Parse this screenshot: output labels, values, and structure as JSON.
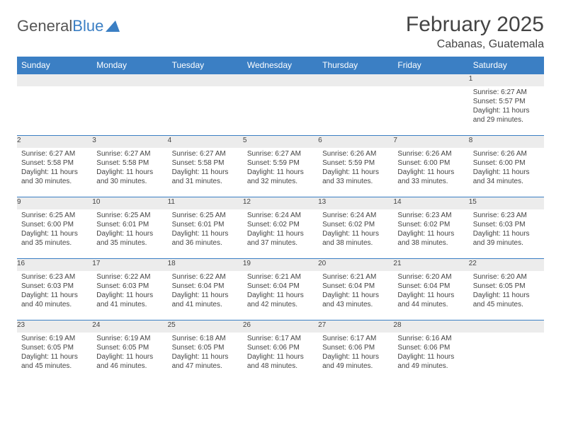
{
  "logo": {
    "text1": "General",
    "text2": "Blue"
  },
  "title": "February 2025",
  "location": "Cabanas, Guatemala",
  "colors": {
    "header_bg": "#3b7fc4",
    "header_text": "#ffffff",
    "daynum_bg": "#ececec",
    "border": "#3b7fc4",
    "body_text": "#444444"
  },
  "weekdays": [
    "Sunday",
    "Monday",
    "Tuesday",
    "Wednesday",
    "Thursday",
    "Friday",
    "Saturday"
  ],
  "weeks": [
    [
      null,
      null,
      null,
      null,
      null,
      null,
      {
        "n": "1",
        "sr": "Sunrise: 6:27 AM",
        "ss": "Sunset: 5:57 PM",
        "dl": "Daylight: 11 hours and 29 minutes."
      }
    ],
    [
      {
        "n": "2",
        "sr": "Sunrise: 6:27 AM",
        "ss": "Sunset: 5:58 PM",
        "dl": "Daylight: 11 hours and 30 minutes."
      },
      {
        "n": "3",
        "sr": "Sunrise: 6:27 AM",
        "ss": "Sunset: 5:58 PM",
        "dl": "Daylight: 11 hours and 30 minutes."
      },
      {
        "n": "4",
        "sr": "Sunrise: 6:27 AM",
        "ss": "Sunset: 5:58 PM",
        "dl": "Daylight: 11 hours and 31 minutes."
      },
      {
        "n": "5",
        "sr": "Sunrise: 6:27 AM",
        "ss": "Sunset: 5:59 PM",
        "dl": "Daylight: 11 hours and 32 minutes."
      },
      {
        "n": "6",
        "sr": "Sunrise: 6:26 AM",
        "ss": "Sunset: 5:59 PM",
        "dl": "Daylight: 11 hours and 33 minutes."
      },
      {
        "n": "7",
        "sr": "Sunrise: 6:26 AM",
        "ss": "Sunset: 6:00 PM",
        "dl": "Daylight: 11 hours and 33 minutes."
      },
      {
        "n": "8",
        "sr": "Sunrise: 6:26 AM",
        "ss": "Sunset: 6:00 PM",
        "dl": "Daylight: 11 hours and 34 minutes."
      }
    ],
    [
      {
        "n": "9",
        "sr": "Sunrise: 6:25 AM",
        "ss": "Sunset: 6:00 PM",
        "dl": "Daylight: 11 hours and 35 minutes."
      },
      {
        "n": "10",
        "sr": "Sunrise: 6:25 AM",
        "ss": "Sunset: 6:01 PM",
        "dl": "Daylight: 11 hours and 35 minutes."
      },
      {
        "n": "11",
        "sr": "Sunrise: 6:25 AM",
        "ss": "Sunset: 6:01 PM",
        "dl": "Daylight: 11 hours and 36 minutes."
      },
      {
        "n": "12",
        "sr": "Sunrise: 6:24 AM",
        "ss": "Sunset: 6:02 PM",
        "dl": "Daylight: 11 hours and 37 minutes."
      },
      {
        "n": "13",
        "sr": "Sunrise: 6:24 AM",
        "ss": "Sunset: 6:02 PM",
        "dl": "Daylight: 11 hours and 38 minutes."
      },
      {
        "n": "14",
        "sr": "Sunrise: 6:23 AM",
        "ss": "Sunset: 6:02 PM",
        "dl": "Daylight: 11 hours and 38 minutes."
      },
      {
        "n": "15",
        "sr": "Sunrise: 6:23 AM",
        "ss": "Sunset: 6:03 PM",
        "dl": "Daylight: 11 hours and 39 minutes."
      }
    ],
    [
      {
        "n": "16",
        "sr": "Sunrise: 6:23 AM",
        "ss": "Sunset: 6:03 PM",
        "dl": "Daylight: 11 hours and 40 minutes."
      },
      {
        "n": "17",
        "sr": "Sunrise: 6:22 AM",
        "ss": "Sunset: 6:03 PM",
        "dl": "Daylight: 11 hours and 41 minutes."
      },
      {
        "n": "18",
        "sr": "Sunrise: 6:22 AM",
        "ss": "Sunset: 6:04 PM",
        "dl": "Daylight: 11 hours and 41 minutes."
      },
      {
        "n": "19",
        "sr": "Sunrise: 6:21 AM",
        "ss": "Sunset: 6:04 PM",
        "dl": "Daylight: 11 hours and 42 minutes."
      },
      {
        "n": "20",
        "sr": "Sunrise: 6:21 AM",
        "ss": "Sunset: 6:04 PM",
        "dl": "Daylight: 11 hours and 43 minutes."
      },
      {
        "n": "21",
        "sr": "Sunrise: 6:20 AM",
        "ss": "Sunset: 6:04 PM",
        "dl": "Daylight: 11 hours and 44 minutes."
      },
      {
        "n": "22",
        "sr": "Sunrise: 6:20 AM",
        "ss": "Sunset: 6:05 PM",
        "dl": "Daylight: 11 hours and 45 minutes."
      }
    ],
    [
      {
        "n": "23",
        "sr": "Sunrise: 6:19 AM",
        "ss": "Sunset: 6:05 PM",
        "dl": "Daylight: 11 hours and 45 minutes."
      },
      {
        "n": "24",
        "sr": "Sunrise: 6:19 AM",
        "ss": "Sunset: 6:05 PM",
        "dl": "Daylight: 11 hours and 46 minutes."
      },
      {
        "n": "25",
        "sr": "Sunrise: 6:18 AM",
        "ss": "Sunset: 6:05 PM",
        "dl": "Daylight: 11 hours and 47 minutes."
      },
      {
        "n": "26",
        "sr": "Sunrise: 6:17 AM",
        "ss": "Sunset: 6:06 PM",
        "dl": "Daylight: 11 hours and 48 minutes."
      },
      {
        "n": "27",
        "sr": "Sunrise: 6:17 AM",
        "ss": "Sunset: 6:06 PM",
        "dl": "Daylight: 11 hours and 49 minutes."
      },
      {
        "n": "28",
        "sr": "Sunrise: 6:16 AM",
        "ss": "Sunset: 6:06 PM",
        "dl": "Daylight: 11 hours and 49 minutes."
      },
      null
    ]
  ]
}
